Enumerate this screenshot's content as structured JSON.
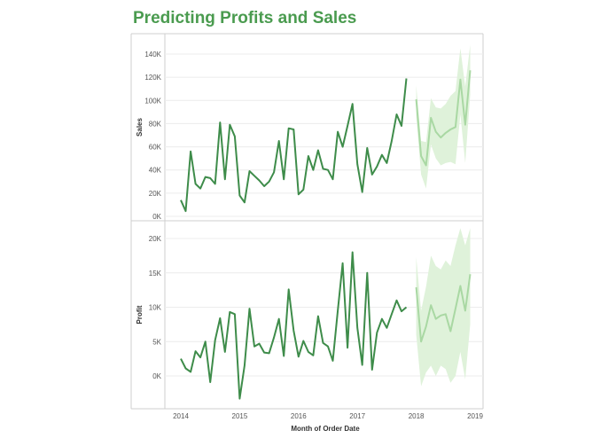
{
  "title": "Predicting Profits and Sales",
  "colors": {
    "actual": "#3e8c4a",
    "forecast": "#a9d8a3",
    "band": "#dff2da",
    "title": "#4a9b4f",
    "grid": "#ececec",
    "axis": "#cfcfcf"
  },
  "chart_data": {
    "type": "line",
    "x_axis": {
      "title": "Month of Order Date",
      "tick_labels": [
        "2014",
        "2015",
        "2016",
        "2017",
        "2018",
        "2019"
      ],
      "range": [
        "2014-01",
        "2019-01"
      ]
    },
    "panels": [
      {
        "ylabel": "Sales",
        "ylim": [
          0,
          140000
        ],
        "tick_values": [
          0,
          20000,
          40000,
          60000,
          80000,
          100000,
          120000,
          140000
        ],
        "tick_labels": [
          "0K",
          "20K",
          "40K",
          "60K",
          "80K",
          "100K",
          "120K",
          "140K"
        ],
        "actual": {
          "x": [
            "2014-01",
            "2014-02",
            "2014-03",
            "2014-04",
            "2014-05",
            "2014-06",
            "2014-07",
            "2014-08",
            "2014-09",
            "2014-10",
            "2014-11",
            "2014-12",
            "2015-01",
            "2015-02",
            "2015-03",
            "2015-04",
            "2015-05",
            "2015-06",
            "2015-07",
            "2015-08",
            "2015-09",
            "2015-10",
            "2015-11",
            "2015-12",
            "2016-01",
            "2016-02",
            "2016-03",
            "2016-04",
            "2016-05",
            "2016-06",
            "2016-07",
            "2016-08",
            "2016-09",
            "2016-10",
            "2016-11",
            "2016-12",
            "2017-01",
            "2017-02",
            "2017-03",
            "2017-04",
            "2017-05",
            "2017-06",
            "2017-07",
            "2017-08",
            "2017-09",
            "2017-10",
            "2017-11",
            "2017-12"
          ],
          "y": [
            14000,
            4500,
            56000,
            28000,
            24000,
            34000,
            33000,
            28000,
            81000,
            32000,
            79000,
            69000,
            18000,
            12000,
            39000,
            35000,
            31000,
            26000,
            30000,
            38000,
            65000,
            32000,
            76000,
            75000,
            19000,
            23000,
            52000,
            40000,
            57000,
            41000,
            40000,
            32000,
            73000,
            60000,
            78000,
            97000,
            45000,
            21000,
            59000,
            36000,
            43000,
            53000,
            46000,
            65000,
            88000,
            78000,
            119000,
            null
          ]
        },
        "forecast": {
          "x": [
            "2018-01",
            "2018-02",
            "2018-03",
            "2018-04",
            "2018-05",
            "2018-06",
            "2018-07",
            "2018-08",
            "2018-09",
            "2018-10",
            "2018-11",
            "2018-12"
          ],
          "y": [
            101000,
            52000,
            44000,
            85000,
            73000,
            68000,
            72000,
            75000,
            77000,
            118000,
            79000,
            126000
          ],
          "upper": [
            113000,
            65000,
            64000,
            102000,
            94000,
            93000,
            97000,
            104000,
            108000,
            145000,
            112000,
            148000
          ],
          "lower": [
            87000,
            36000,
            24000,
            62000,
            50000,
            44000,
            46000,
            47000,
            45000,
            88000,
            46000,
            105000
          ]
        }
      },
      {
        "ylabel": "Profit",
        "ylim": [
          -5000,
          22500
        ],
        "tick_values": [
          0,
          5000,
          10000,
          15000,
          20000
        ],
        "tick_labels": [
          "0K",
          "5K",
          "10K",
          "15K",
          "20K"
        ],
        "actual": {
          "x": [
            "2014-01",
            "2014-02",
            "2014-03",
            "2014-04",
            "2014-05",
            "2014-06",
            "2014-07",
            "2014-08",
            "2014-09",
            "2014-10",
            "2014-11",
            "2014-12",
            "2015-01",
            "2015-02",
            "2015-03",
            "2015-04",
            "2015-05",
            "2015-06",
            "2015-07",
            "2015-08",
            "2015-09",
            "2015-10",
            "2015-11",
            "2015-12",
            "2016-01",
            "2016-02",
            "2016-03",
            "2016-04",
            "2016-05",
            "2016-06",
            "2016-07",
            "2016-08",
            "2016-09",
            "2016-10",
            "2016-11",
            "2016-12",
            "2017-01",
            "2017-02",
            "2017-03",
            "2017-04",
            "2017-05",
            "2017-06",
            "2017-07",
            "2017-08",
            "2017-09",
            "2017-10",
            "2017-11",
            "2017-12"
          ],
          "y": [
            2500,
            1100,
            600,
            3600,
            2700,
            5000,
            -900,
            5200,
            8400,
            3500,
            9300,
            9000,
            -3300,
            1500,
            9800,
            4300,
            4700,
            3400,
            3300,
            5600,
            8300,
            2900,
            12600,
            6600,
            2800,
            5100,
            3500,
            3000,
            8700,
            4800,
            4300,
            2200,
            9500,
            16400,
            4100,
            18000,
            7000,
            1600,
            15000,
            900,
            6300,
            8300,
            7000,
            9000,
            11000,
            9400,
            10000,
            null
          ]
        },
        "forecast": {
          "x": [
            "2018-01",
            "2018-02",
            "2018-03",
            "2018-04",
            "2018-05",
            "2018-06",
            "2018-07",
            "2018-08",
            "2018-09",
            "2018-10",
            "2018-11",
            "2018-12"
          ],
          "y": [
            12900,
            5000,
            7200,
            10300,
            8300,
            8800,
            9000,
            6500,
            9800,
            13100,
            9500,
            14800
          ],
          "upper": [
            17300,
            9500,
            13000,
            17500,
            16000,
            15500,
            16800,
            16000,
            19000,
            21500,
            19000,
            21500
          ],
          "lower": [
            6000,
            -1500,
            500,
            1500,
            0,
            1500,
            1000,
            -1000,
            0,
            3500,
            -500,
            7500
          ]
        }
      }
    ]
  }
}
